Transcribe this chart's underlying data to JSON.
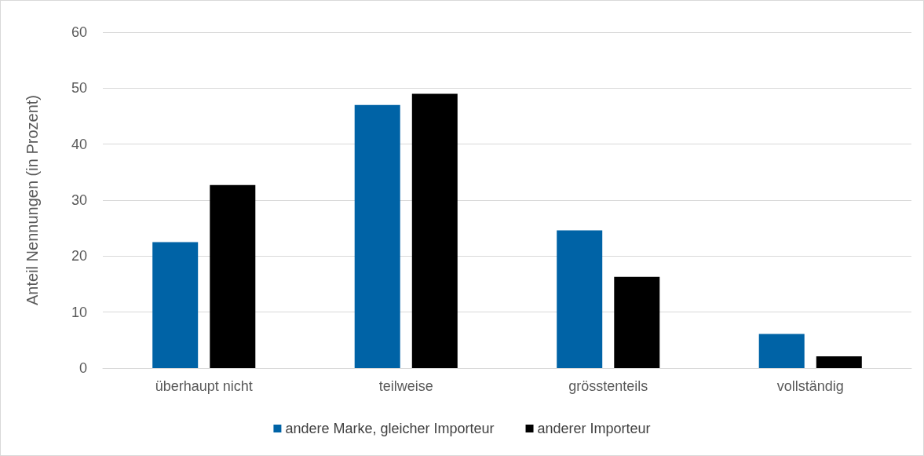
{
  "chart_data": {
    "type": "bar",
    "ylabel": "Anteil Nennungen (in Prozent)",
    "categories": [
      "überhaupt nicht",
      "teilweise",
      "grösstenteils",
      "vollständig"
    ],
    "series": [
      {
        "name": "andere Marke, gleicher Importeur",
        "color": "#0063a6",
        "values": [
          22.5,
          47.0,
          24.6,
          6.1
        ]
      },
      {
        "name": "anderer Importeur",
        "color": "#000000",
        "values": [
          32.7,
          49.0,
          16.3,
          2.1
        ]
      }
    ],
    "ylim": [
      0,
      60
    ],
    "yticks": [
      0,
      10,
      20,
      30,
      40,
      50,
      60
    ],
    "grid": "y",
    "legend": "bottom"
  }
}
